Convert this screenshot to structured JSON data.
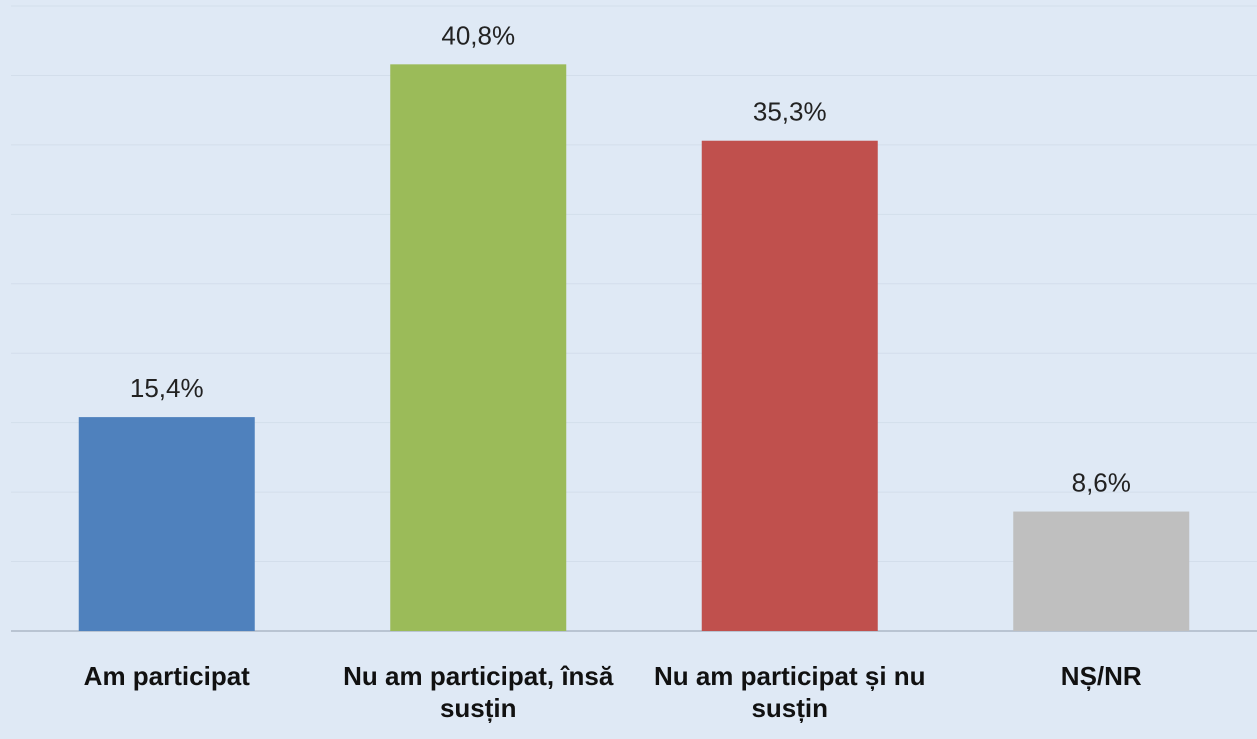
{
  "chart_data": {
    "type": "bar",
    "categories": [
      "Am participat",
      "Nu am participat, însă susțin",
      "Nu am participat și nu susțin",
      "NȘ/NR"
    ],
    "values": [
      15.4,
      40.8,
      35.3,
      8.6
    ],
    "value_labels": [
      "15,4%",
      "40,8%",
      "35,3%",
      "8,6%"
    ],
    "colors": [
      "#4f81bd",
      "#9bbb59",
      "#c0504d",
      "#bfbfbf"
    ],
    "ylim": [
      0,
      45
    ],
    "yticks": [
      0,
      5,
      10,
      15,
      20,
      25,
      30,
      35,
      40,
      45
    ],
    "grid": true
  }
}
